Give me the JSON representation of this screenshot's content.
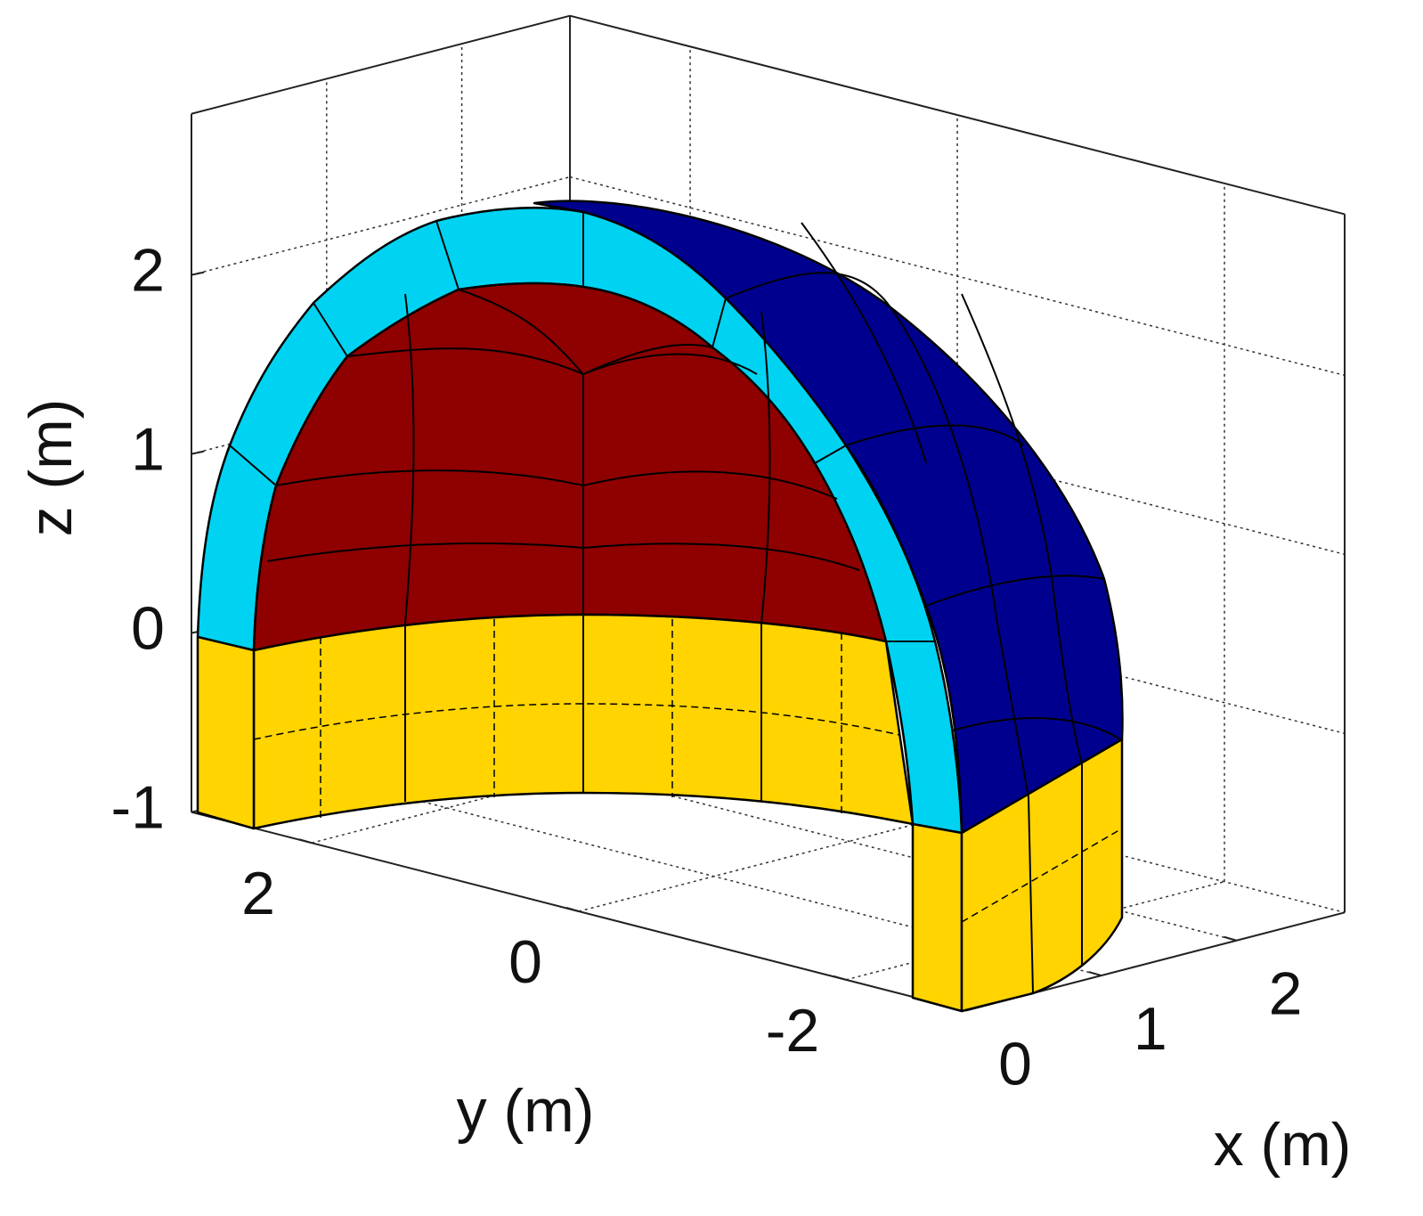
{
  "chart_data": {
    "type": "surface3d",
    "xlabel": "x (m)",
    "ylabel": "y (m)",
    "zlabel": "z (m)",
    "xlim": [
      0,
      2.8
    ],
    "ylim": [
      -2.9,
      2.9
    ],
    "zlim": [
      -1,
      2.9
    ],
    "xticks": [
      0,
      1,
      2
    ],
    "yticks": [
      2,
      0,
      -2
    ],
    "zticks": [
      2,
      1,
      0,
      -1
    ],
    "grid": true
  }
}
